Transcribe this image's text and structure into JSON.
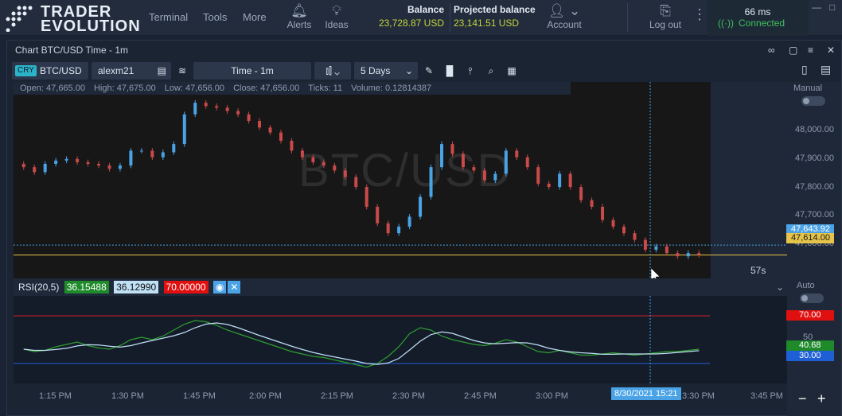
{
  "brand": {
    "line1": "TRADER",
    "line2": "EVOLUTION"
  },
  "menu": {
    "terminal": "Terminal",
    "tools": "Tools",
    "more": "More"
  },
  "nav": {
    "alerts": "Alerts",
    "ideas": "Ideas",
    "account": "Account",
    "logout": "Log out"
  },
  "balance": {
    "label": "Balance",
    "value": "23,728.87 USD"
  },
  "projected": {
    "label": "Projected balance",
    "value": "23,141.51 USD"
  },
  "status": {
    "latency": "66 ms",
    "connection": "Connected"
  },
  "panel": {
    "title": "Chart BTC/USD Time - 1m"
  },
  "toolbar": {
    "badge": "CRY",
    "symbol": "BTC/USD",
    "account": "alexm21",
    "timeframe": "Time - 1m",
    "range": "5 Days"
  },
  "info": {
    "open": "Open: 47,665.00",
    "high": "High: 47,675.00",
    "low": "Low: 47,656.00",
    "close": "Close: 47,656.00",
    "ticks": "Ticks: 11",
    "volume": "Volume: 0.12814387"
  },
  "watermark": "BTC/USD",
  "countdown": "57s",
  "side": {
    "manual": "Manual",
    "auto": "Auto"
  },
  "price_axis": [
    "48,000.00",
    "47,900.00",
    "47,800.00",
    "47,700.00",
    "47,600.00"
  ],
  "price_tags": {
    "cursor": "47,643.92",
    "last": "47,614.00"
  },
  "rsi": {
    "label": "RSI(20,5)",
    "v1": "36.15488",
    "v2": "36.12990",
    "v3": "70.00000"
  },
  "rsi_axis": {
    "upper": "70.00",
    "current": "40.68",
    "lower": "30.00",
    "mid": "50"
  },
  "time_axis": [
    "1:15 PM",
    "1:30 PM",
    "1:45 PM",
    "2:00 PM",
    "2:15 PM",
    "2:30 PM",
    "2:45 PM",
    "3:00 PM",
    "3:30 PM",
    "3:45 PM"
  ],
  "cursor_time": "8/30/2021 15:21",
  "colors": {
    "up": "#4aa3e6",
    "down": "#c94a4a",
    "accent": "#2bb3c9",
    "balance": "#c6d43a",
    "rsi_up": "#cc2222",
    "rsi_low": "#1f5fd6",
    "rsi_line": "#2e9e2e",
    "rsi_signal": "#bfe0f5"
  },
  "chart_data": {
    "type": "candlestick",
    "series": [
      {
        "values": [
          47880,
          47865,
          47890,
          47900,
          47905,
          47895,
          47890,
          47885,
          47875,
          47885,
          47930,
          47930,
          47910,
          47925,
          47950,
          48040,
          48075,
          48065,
          48060,
          48050,
          48040,
          48020,
          48000,
          47985,
          47960,
          47930,
          47910,
          47895,
          47885,
          47870,
          47850,
          47820,
          47760,
          47710,
          47680,
          47700,
          47730,
          47790,
          47880,
          47950,
          47920,
          47880,
          47870,
          47840,
          47860,
          47930,
          47910,
          47880,
          47830,
          47820,
          47860,
          47820,
          47780,
          47760,
          47720,
          47700,
          47680,
          47660,
          47630,
          47640,
          47620,
          47610,
          47620,
          47614
        ]
      }
    ],
    "ylim": [
      47560,
      48090
    ]
  }
}
